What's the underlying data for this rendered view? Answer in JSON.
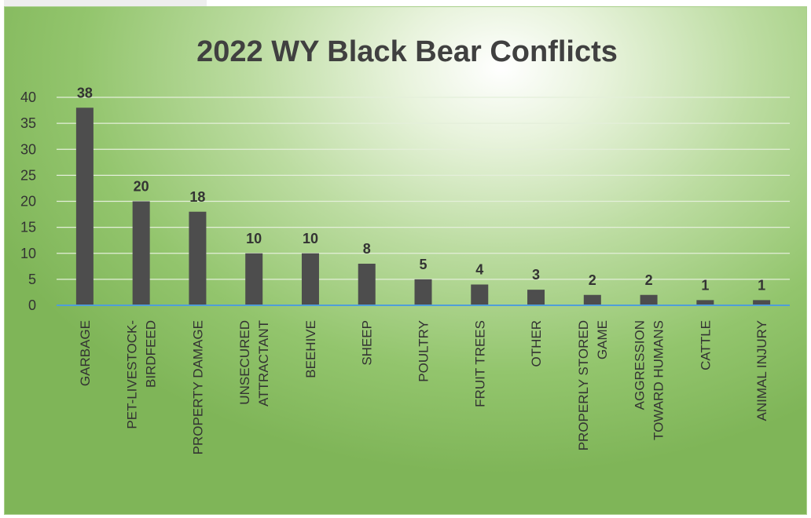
{
  "chart_data": {
    "type": "bar",
    "title": "2022 WY Black Bear Conflicts",
    "xlabel": "",
    "ylabel": "",
    "ylim": [
      0,
      40
    ],
    "yticks": [
      0,
      5,
      10,
      15,
      20,
      25,
      30,
      35,
      40
    ],
    "categories": [
      [
        "GARBAGE"
      ],
      [
        "PET-LIVESTOCK-",
        "BIRDFEED"
      ],
      [
        "PROPERTY DAMAGE"
      ],
      [
        "UNSECURED",
        "ATTRACTANT"
      ],
      [
        "BEEHIVE"
      ],
      [
        "SHEEP"
      ],
      [
        "POULTRY"
      ],
      [
        "FRUIT TREES"
      ],
      [
        "OTHER"
      ],
      [
        "PROPERLY STORED",
        "GAME"
      ],
      [
        "AGGRESSION",
        "TOWARD HUMANS"
      ],
      [
        "CATTLE"
      ],
      [
        "ANIMAL INJURY"
      ]
    ],
    "values": [
      38,
      20,
      18,
      10,
      10,
      8,
      5,
      4,
      3,
      2,
      2,
      1,
      1
    ],
    "grid": true,
    "legend": "none",
    "colors": {
      "bar": "#4d4d4d",
      "axis": "#4f9ed9",
      "background": "#a5d183"
    }
  }
}
